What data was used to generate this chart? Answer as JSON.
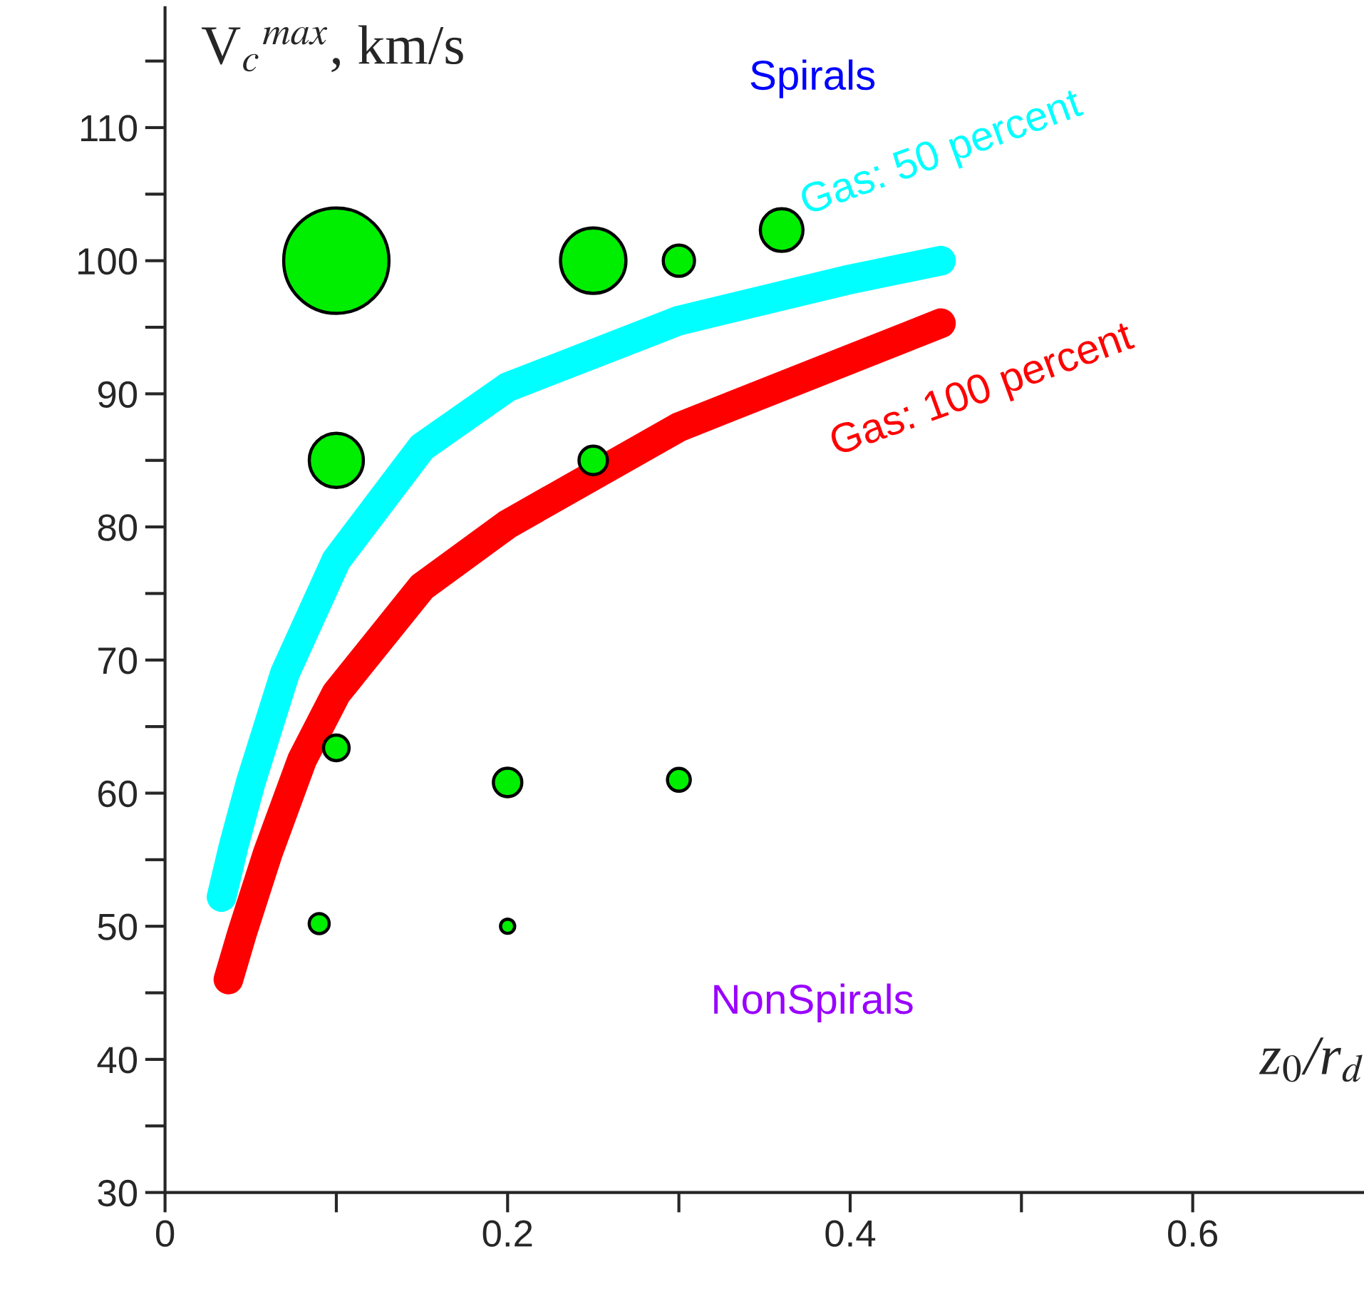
{
  "chart_data": {
    "type": "bubble",
    "ylabel": "V$_{c}$$^{max}$, km/s",
    "xlabel": "z$_{0}$/r$_{d}$",
    "annotations": [
      "Spirals",
      "NonSpirals"
    ],
    "xlim": [
      0,
      0.7
    ],
    "ylim": [
      30,
      119
    ],
    "xticks": [
      0,
      {
        "value": 0.1,
        "label": null
      },
      0.2,
      {
        "value": 0.3,
        "label": null
      },
      0.4,
      {
        "value": 0.5,
        "label": null
      },
      0.6
    ],
    "yticks": [
      30,
      {
        "value": 35,
        "label": null
      },
      40,
      {
        "value": 45,
        "label": null
      },
      50,
      {
        "value": 55,
        "label": null
      },
      60,
      {
        "value": 65,
        "label": null
      },
      70,
      {
        "value": 75,
        "label": null
      },
      80,
      {
        "value": 85,
        "label": null
      },
      90,
      {
        "value": 95,
        "label": null
      },
      100,
      {
        "value": 105,
        "label": null
      },
      110,
      {
        "value": 115,
        "label": null
      }
    ],
    "grid": false,
    "legend": false,
    "series": [
      {
        "color": "#00ee00",
        "x": [
          0.1,
          0.25,
          0.3,
          0.36,
          0.1,
          0.25,
          0.1,
          0.2,
          0.3,
          0.09,
          0.2
        ],
        "values": [
          100,
          100,
          100,
          102.3,
          85,
          85,
          63.4,
          60.8,
          61,
          50.2,
          50
        ],
        "sizes": [
          1,
          0.386,
          0.088,
          0.164,
          0.264,
          0.073,
          0.059,
          0.073,
          0.047,
          0.036,
          0.018
        ]
      },
      {
        "type": "line",
        "name": "Gas: 50 percent",
        "color": "#00ffff",
        "x": [
          0.033,
          0.04,
          0.05,
          0.07,
          0.1,
          0.15,
          0.2,
          0.3,
          0.4,
          0.453
        ],
        "values": [
          52.2,
          56,
          60.8,
          69,
          77.5,
          86,
          90.5,
          95.5,
          98.6,
          100
        ]
      },
      {
        "type": "line",
        "name": "Gas: 100 percent",
        "color": "#ff0000",
        "x": [
          0.037,
          0.045,
          0.06,
          0.08,
          0.1,
          0.15,
          0.2,
          0.3,
          0.4,
          0.453
        ],
        "values": [
          46,
          49.5,
          55.5,
          62.5,
          67.5,
          75.5,
          80.2,
          87.5,
          92.6,
          95.3
        ]
      }
    ]
  }
}
